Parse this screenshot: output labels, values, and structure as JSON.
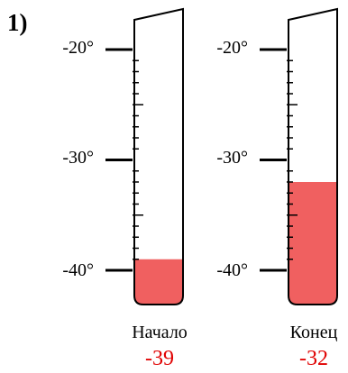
{
  "problem_number": "1)",
  "thermometers": [
    {
      "caption": "Начало",
      "reading": "-39",
      "value": -39,
      "tick_labels": [
        "-20°",
        "-30°",
        "-40°"
      ]
    },
    {
      "caption": "Конец",
      "reading": "-32",
      "value": -32,
      "tick_labels": [
        "-20°",
        "-30°",
        "-40°"
      ]
    }
  ],
  "scale": {
    "major_values": [
      -20,
      -30,
      -40
    ],
    "minor_step": 1
  },
  "colors": {
    "fill": "#f06060",
    "reading": "#e00000",
    "outline": "#000000"
  }
}
